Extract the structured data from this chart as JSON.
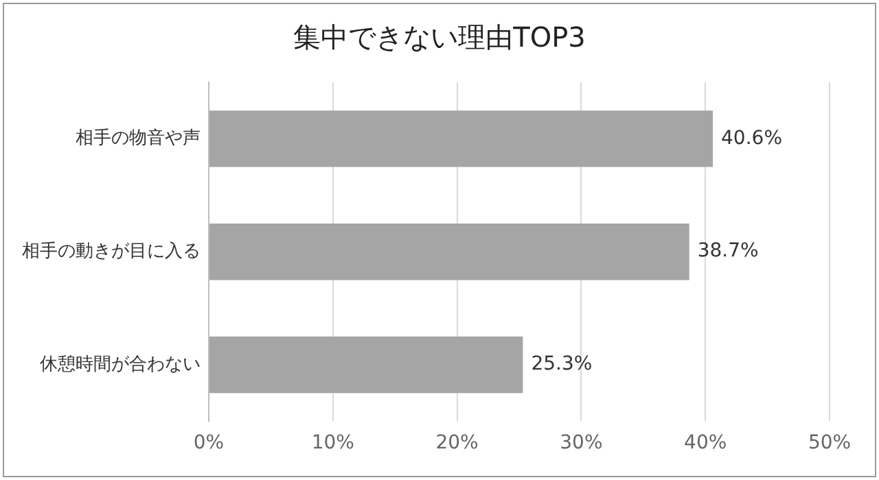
{
  "chart_data": {
    "type": "bar",
    "orientation": "horizontal",
    "title": "集中できない理由TOP3",
    "categories": [
      "相手の物音や声",
      "相手の動きが目に入る",
      "休憩時間が合わない"
    ],
    "values": [
      40.6,
      38.7,
      25.3
    ],
    "value_labels": [
      "40.6%",
      "38.7%",
      "25.3%"
    ],
    "color": "#a5a5a5",
    "xlim": [
      0,
      50
    ],
    "xticks": [
      {
        "value": 0,
        "label": "0%"
      },
      {
        "value": 10,
        "label": "10%"
      },
      {
        "value": 20,
        "label": "20%"
      },
      {
        "value": 30,
        "label": "30%"
      },
      {
        "value": 40,
        "label": "40%"
      },
      {
        "value": 50,
        "label": "50%"
      }
    ],
    "grid": "x"
  }
}
